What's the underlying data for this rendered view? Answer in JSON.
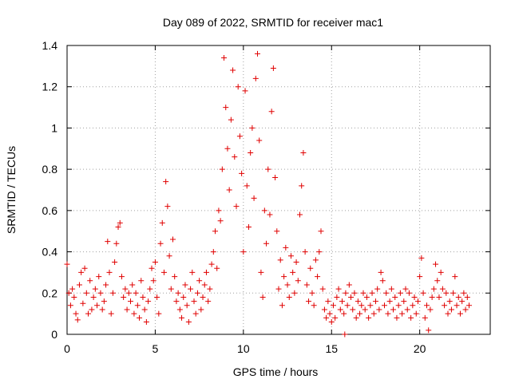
{
  "chart_data": {
    "type": "scatter",
    "title": "Day 089 of 2022, SRMTID for receiver mac1",
    "xlabel": "GPS time / hours",
    "ylabel": "SRMTID / TECUs",
    "xlim": [
      0,
      24
    ],
    "ylim": [
      0,
      1.4
    ],
    "xticks": [
      0,
      5,
      10,
      15,
      20
    ],
    "xtick_labels": [
      "0",
      "5",
      "10",
      "15",
      "20"
    ],
    "yticks": [
      0,
      0.2,
      0.4,
      0.6,
      0.8,
      1,
      1.2,
      1.4
    ],
    "ytick_labels": [
      "0",
      "0.2",
      "0.4",
      "0.6",
      "0.8",
      "1",
      "1.2",
      "1.4"
    ],
    "grid": true,
    "marker": "+",
    "color": "#e00000",
    "series": [
      {
        "name": "SRMTID",
        "points": [
          [
            0.0,
            0.34
          ],
          [
            0.1,
            0.2
          ],
          [
            0.2,
            0.14
          ],
          [
            0.3,
            0.22
          ],
          [
            0.4,
            0.18
          ],
          [
            0.5,
            0.1
          ],
          [
            0.6,
            0.07
          ],
          [
            0.7,
            0.24
          ],
          [
            0.8,
            0.3
          ],
          [
            0.9,
            0.15
          ],
          [
            1.0,
            0.32
          ],
          [
            1.1,
            0.2
          ],
          [
            1.2,
            0.1
          ],
          [
            1.3,
            0.26
          ],
          [
            1.4,
            0.12
          ],
          [
            1.5,
            0.18
          ],
          [
            1.6,
            0.22
          ],
          [
            1.7,
            0.14
          ],
          [
            1.8,
            0.28
          ],
          [
            1.9,
            0.2
          ],
          [
            2.0,
            0.12
          ],
          [
            2.1,
            0.16
          ],
          [
            2.2,
            0.24
          ],
          [
            2.3,
            0.45
          ],
          [
            2.4,
            0.3
          ],
          [
            2.5,
            0.1
          ],
          [
            2.6,
            0.2
          ],
          [
            2.7,
            0.35
          ],
          [
            2.8,
            0.44
          ],
          [
            2.9,
            0.52
          ],
          [
            3.0,
            0.54
          ],
          [
            3.1,
            0.28
          ],
          [
            3.2,
            0.18
          ],
          [
            3.3,
            0.22
          ],
          [
            3.4,
            0.12
          ],
          [
            3.5,
            0.2
          ],
          [
            3.6,
            0.16
          ],
          [
            3.7,
            0.24
          ],
          [
            3.8,
            0.1
          ],
          [
            3.9,
            0.2
          ],
          [
            4.0,
            0.14
          ],
          [
            4.1,
            0.08
          ],
          [
            4.2,
            0.26
          ],
          [
            4.3,
            0.18
          ],
          [
            4.4,
            0.12
          ],
          [
            4.5,
            0.06
          ],
          [
            4.6,
            0.16
          ],
          [
            4.7,
            0.22
          ],
          [
            4.8,
            0.32
          ],
          [
            4.9,
            0.26
          ],
          [
            5.0,
            0.35
          ],
          [
            5.1,
            0.18
          ],
          [
            5.2,
            0.1
          ],
          [
            5.3,
            0.44
          ],
          [
            5.4,
            0.54
          ],
          [
            5.5,
            0.3
          ],
          [
            5.6,
            0.74
          ],
          [
            5.7,
            0.62
          ],
          [
            5.8,
            0.38
          ],
          [
            5.9,
            0.22
          ],
          [
            6.0,
            0.46
          ],
          [
            6.1,
            0.28
          ],
          [
            6.2,
            0.16
          ],
          [
            6.3,
            0.2
          ],
          [
            6.4,
            0.12
          ],
          [
            6.5,
            0.08
          ],
          [
            6.6,
            0.18
          ],
          [
            6.7,
            0.24
          ],
          [
            6.8,
            0.14
          ],
          [
            6.9,
            0.06
          ],
          [
            7.0,
            0.22
          ],
          [
            7.1,
            0.3
          ],
          [
            7.2,
            0.16
          ],
          [
            7.3,
            0.1
          ],
          [
            7.4,
            0.2
          ],
          [
            7.5,
            0.26
          ],
          [
            7.6,
            0.12
          ],
          [
            7.7,
            0.18
          ],
          [
            7.8,
            0.24
          ],
          [
            7.9,
            0.3
          ],
          [
            8.0,
            0.16
          ],
          [
            8.1,
            0.22
          ],
          [
            8.2,
            0.34
          ],
          [
            8.3,
            0.4
          ],
          [
            8.4,
            0.5
          ],
          [
            8.5,
            0.32
          ],
          [
            8.6,
            0.6
          ],
          [
            8.7,
            0.55
          ],
          [
            8.8,
            0.8
          ],
          [
            8.9,
            1.34
          ],
          [
            9.0,
            1.1
          ],
          [
            9.1,
            0.9
          ],
          [
            9.2,
            0.7
          ],
          [
            9.3,
            1.04
          ],
          [
            9.4,
            1.28
          ],
          [
            9.5,
            0.86
          ],
          [
            9.6,
            0.62
          ],
          [
            9.7,
            1.2
          ],
          [
            9.8,
            0.96
          ],
          [
            9.9,
            0.78
          ],
          [
            10.0,
            0.4
          ],
          [
            10.1,
            1.18
          ],
          [
            10.2,
            0.72
          ],
          [
            10.3,
            0.52
          ],
          [
            10.4,
            0.88
          ],
          [
            10.5,
            1.0
          ],
          [
            10.6,
            0.66
          ],
          [
            10.7,
            1.24
          ],
          [
            10.8,
            1.36
          ],
          [
            10.9,
            0.94
          ],
          [
            11.0,
            0.3
          ],
          [
            11.1,
            0.18
          ],
          [
            11.2,
            0.6
          ],
          [
            11.3,
            0.44
          ],
          [
            11.4,
            0.8
          ],
          [
            11.5,
            0.58
          ],
          [
            11.6,
            1.08
          ],
          [
            11.7,
            1.29
          ],
          [
            11.8,
            0.76
          ],
          [
            11.9,
            0.5
          ],
          [
            12.0,
            0.22
          ],
          [
            12.1,
            0.36
          ],
          [
            12.2,
            0.14
          ],
          [
            12.3,
            0.28
          ],
          [
            12.4,
            0.42
          ],
          [
            12.5,
            0.24
          ],
          [
            12.6,
            0.18
          ],
          [
            12.7,
            0.38
          ],
          [
            12.8,
            0.3
          ],
          [
            12.9,
            0.2
          ],
          [
            13.0,
            0.35
          ],
          [
            13.1,
            0.26
          ],
          [
            13.2,
            0.58
          ],
          [
            13.3,
            0.72
          ],
          [
            13.4,
            0.88
          ],
          [
            13.5,
            0.4
          ],
          [
            13.6,
            0.24
          ],
          [
            13.7,
            0.16
          ],
          [
            13.8,
            0.32
          ],
          [
            13.9,
            0.2
          ],
          [
            14.0,
            0.14
          ],
          [
            14.1,
            0.36
          ],
          [
            14.2,
            0.28
          ],
          [
            14.3,
            0.4
          ],
          [
            14.4,
            0.5
          ],
          [
            14.5,
            0.22
          ],
          [
            14.6,
            0.12
          ],
          [
            14.7,
            0.08
          ],
          [
            14.8,
            0.16
          ],
          [
            14.9,
            0.1
          ],
          [
            15.0,
            0.06
          ],
          [
            15.1,
            0.14
          ],
          [
            15.2,
            0.08
          ],
          [
            15.3,
            0.18
          ],
          [
            15.4,
            0.22
          ],
          [
            15.5,
            0.12
          ],
          [
            15.6,
            0.16
          ],
          [
            15.7,
            0.1
          ],
          [
            15.75,
            0.0
          ],
          [
            15.8,
            0.2
          ],
          [
            15.9,
            0.14
          ],
          [
            16.0,
            0.24
          ],
          [
            16.1,
            0.18
          ],
          [
            16.2,
            0.12
          ],
          [
            16.3,
            0.2
          ],
          [
            16.4,
            0.08
          ],
          [
            16.5,
            0.16
          ],
          [
            16.6,
            0.1
          ],
          [
            16.7,
            0.14
          ],
          [
            16.8,
            0.2
          ],
          [
            16.9,
            0.12
          ],
          [
            17.0,
            0.18
          ],
          [
            17.1,
            0.08
          ],
          [
            17.2,
            0.14
          ],
          [
            17.3,
            0.2
          ],
          [
            17.4,
            0.1
          ],
          [
            17.5,
            0.16
          ],
          [
            17.6,
            0.22
          ],
          [
            17.7,
            0.12
          ],
          [
            17.8,
            0.3
          ],
          [
            17.9,
            0.26
          ],
          [
            18.0,
            0.14
          ],
          [
            18.1,
            0.2
          ],
          [
            18.2,
            0.1
          ],
          [
            18.3,
            0.16
          ],
          [
            18.4,
            0.22
          ],
          [
            18.5,
            0.12
          ],
          [
            18.6,
            0.18
          ],
          [
            18.7,
            0.08
          ],
          [
            18.8,
            0.14
          ],
          [
            18.9,
            0.2
          ],
          [
            19.0,
            0.1
          ],
          [
            19.1,
            0.16
          ],
          [
            19.2,
            0.22
          ],
          [
            19.3,
            0.12
          ],
          [
            19.4,
            0.2
          ],
          [
            19.5,
            0.08
          ],
          [
            19.6,
            0.14
          ],
          [
            19.7,
            0.18
          ],
          [
            19.8,
            0.1
          ],
          [
            19.9,
            0.16
          ],
          [
            20.0,
            0.28
          ],
          [
            20.1,
            0.37
          ],
          [
            20.2,
            0.2
          ],
          [
            20.3,
            0.08
          ],
          [
            20.4,
            0.14
          ],
          [
            20.5,
            0.02
          ],
          [
            20.6,
            0.12
          ],
          [
            20.7,
            0.18
          ],
          [
            20.8,
            0.22
          ],
          [
            20.9,
            0.34
          ],
          [
            21.0,
            0.26
          ],
          [
            21.1,
            0.18
          ],
          [
            21.2,
            0.3
          ],
          [
            21.3,
            0.22
          ],
          [
            21.4,
            0.14
          ],
          [
            21.5,
            0.2
          ],
          [
            21.6,
            0.1
          ],
          [
            21.7,
            0.16
          ],
          [
            21.8,
            0.12
          ],
          [
            21.9,
            0.2
          ],
          [
            22.0,
            0.28
          ],
          [
            22.1,
            0.14
          ],
          [
            22.2,
            0.18
          ],
          [
            22.3,
            0.1
          ],
          [
            22.4,
            0.16
          ],
          [
            22.5,
            0.2
          ],
          [
            22.6,
            0.12
          ],
          [
            22.7,
            0.18
          ],
          [
            22.8,
            0.14
          ]
        ]
      }
    ]
  }
}
